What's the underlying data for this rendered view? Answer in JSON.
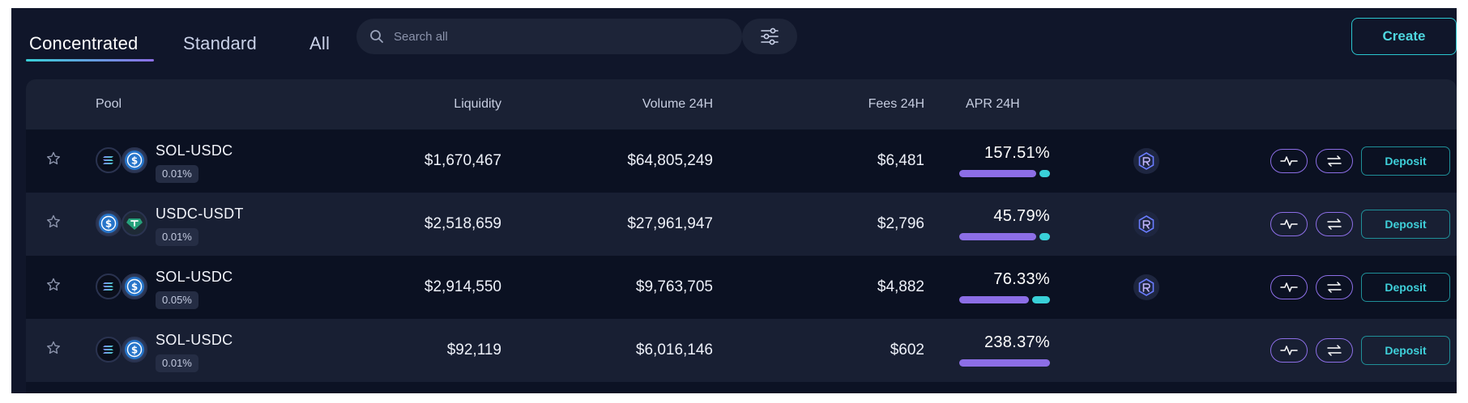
{
  "tabs": [
    {
      "label": "Concentrated",
      "active": true
    },
    {
      "label": "Standard",
      "active": false
    },
    {
      "label": "All",
      "active": false
    }
  ],
  "search": {
    "placeholder": "Search all"
  },
  "create_label": "Create",
  "columns": {
    "pool": "Pool",
    "liquidity": "Liquidity",
    "volume": "Volume 24H",
    "fees": "Fees 24H",
    "apr": "APR 24H"
  },
  "rows": [
    {
      "pool": "SOL-USDC",
      "fee": "0.01%",
      "liquidity": "$1,670,467",
      "volume": "$64,805,249",
      "fees": "$6,481",
      "apr": "157.51%",
      "apr_main_fraction": 0.88,
      "apr_reward_fraction": 0.12,
      "has_reward_icon": true,
      "coin_a": "sol-icon",
      "coin_b": "usdc-icon",
      "deposit_label": "Deposit"
    },
    {
      "pool": "USDC-USDT",
      "fee": "0.01%",
      "liquidity": "$2,518,659",
      "volume": "$27,961,947",
      "fees": "$2,796",
      "apr": "45.79%",
      "apr_main_fraction": 0.88,
      "apr_reward_fraction": 0.12,
      "has_reward_icon": true,
      "coin_a": "usdc-icon",
      "coin_b": "usdt-icon",
      "deposit_label": "Deposit"
    },
    {
      "pool": "SOL-USDC",
      "fee": "0.05%",
      "liquidity": "$2,914,550",
      "volume": "$9,763,705",
      "fees": "$4,882",
      "apr": "76.33%",
      "apr_main_fraction": 0.8,
      "apr_reward_fraction": 0.2,
      "has_reward_icon": true,
      "coin_a": "sol-icon",
      "coin_b": "usdc-icon",
      "deposit_label": "Deposit"
    },
    {
      "pool": "SOL-USDC",
      "fee": "0.01%",
      "liquidity": "$92,119",
      "volume": "$6,016,146",
      "fees": "$602",
      "apr": "238.37%",
      "apr_main_fraction": 1.0,
      "apr_reward_fraction": 0.0,
      "has_reward_icon": false,
      "coin_a": "sol-icon",
      "coin_b": "usdc-icon",
      "deposit_label": "Deposit"
    }
  ],
  "colors": {
    "accent_teal": "#39d0d8",
    "accent_purple": "#8c6ee6",
    "background": "#10162a"
  }
}
